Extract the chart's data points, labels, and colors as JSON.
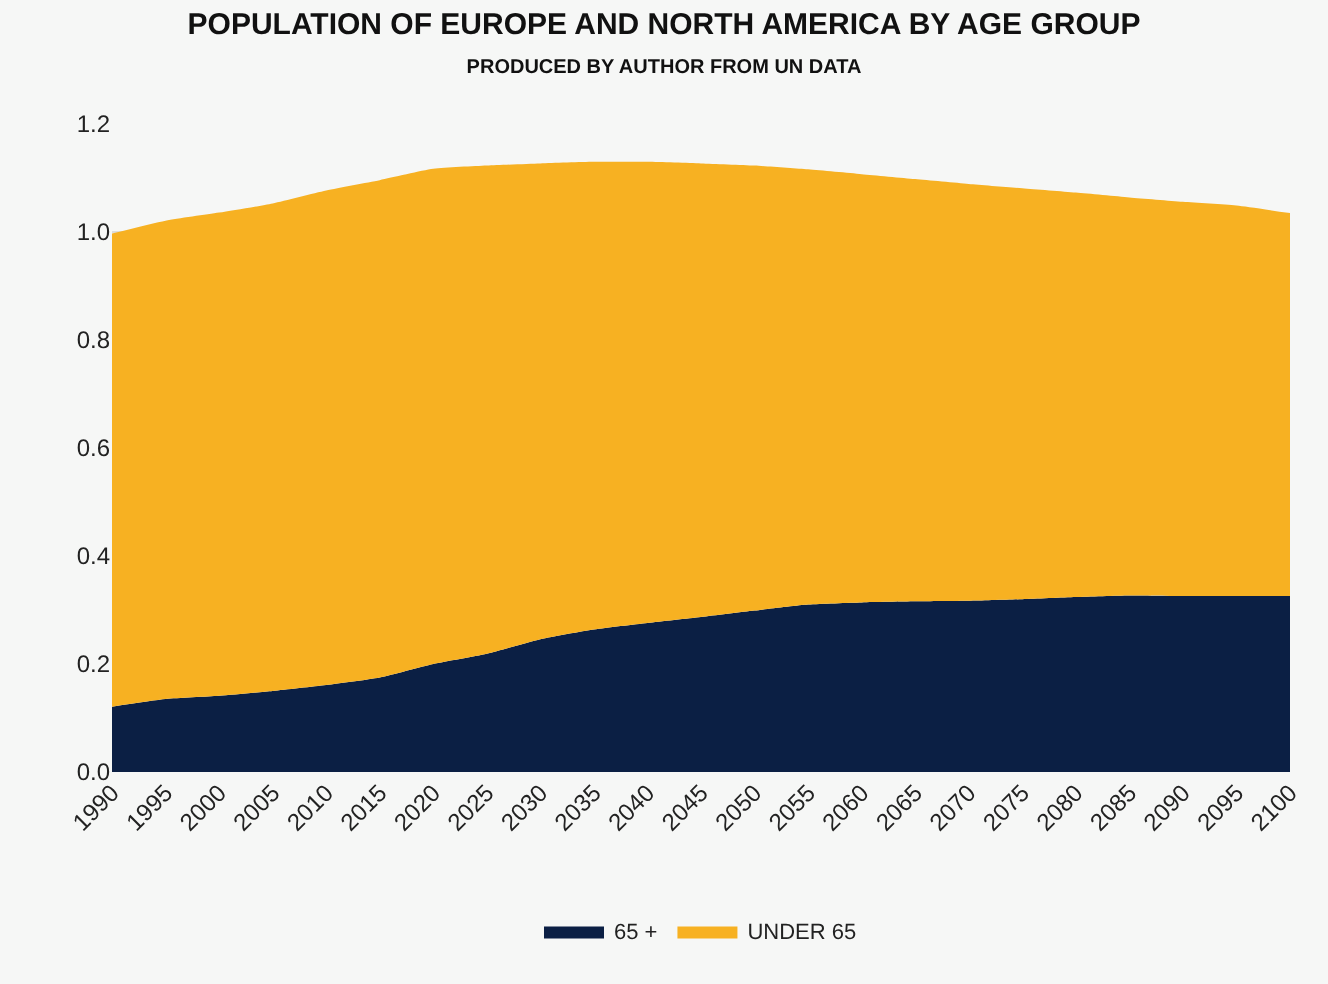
{
  "chart_data": {
    "type": "area",
    "title": "POPULATION OF EUROPE AND NORTH AMERICA BY AGE GROUP",
    "subtitle": "PRODUCED BY AUTHOR FROM UN DATA",
    "categories": [
      "1990",
      "1995",
      "2000",
      "2005",
      "2010",
      "2015",
      "2020",
      "2025",
      "2030",
      "2035",
      "2040",
      "2045",
      "2050",
      "2055",
      "2060",
      "2065",
      "2070",
      "2075",
      "2080",
      "2085",
      "2090",
      "2095",
      "2100"
    ],
    "stacked": true,
    "series": [
      {
        "name": "65 +",
        "color": "#0b1f44",
        "values": [
          0.121,
          0.135,
          0.141,
          0.15,
          0.161,
          0.175,
          0.2,
          0.219,
          0.246,
          0.264,
          0.276,
          0.287,
          0.299,
          0.31,
          0.314,
          0.316,
          0.317,
          0.32,
          0.324,
          0.327,
          0.326,
          0.326,
          0.326
        ]
      },
      {
        "name": "UNDER 65",
        "color": "#f7b122",
        "values": [
          0.876,
          0.886,
          0.895,
          0.903,
          0.916,
          0.921,
          0.917,
          0.904,
          0.881,
          0.866,
          0.854,
          0.84,
          0.824,
          0.806,
          0.793,
          0.782,
          0.772,
          0.761,
          0.749,
          0.737,
          0.73,
          0.723,
          0.709
        ]
      }
    ],
    "ylim": [
      0,
      1.2
    ],
    "yticks": [
      {
        "value": 0,
        "label": "0.0"
      },
      0.2,
      0.4,
      0.6,
      0.8,
      {
        "value": 1,
        "label": "1.0"
      },
      1.2
    ],
    "grid": "y",
    "legend": "bottom"
  }
}
